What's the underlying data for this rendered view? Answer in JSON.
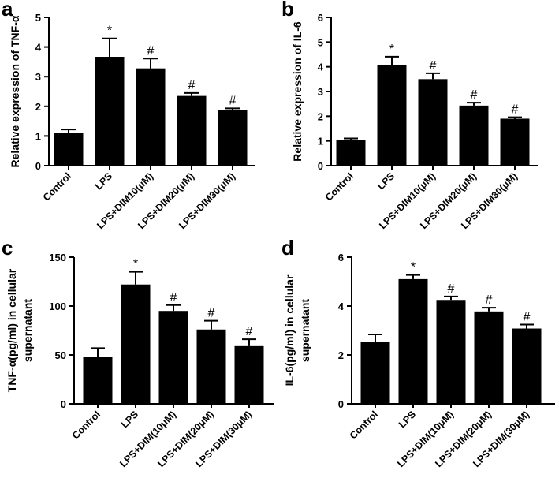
{
  "chart_data": [
    {
      "type": "bar",
      "panel": "a",
      "title": "",
      "xlabel": "",
      "ylabel": "Relative expression of TNF-α",
      "categories": [
        "Control",
        "LPS",
        "LPS+DIM10(μM)",
        "LPS+DIM20(μM)",
        "LPS+DIM30(μM)"
      ],
      "values": [
        1.1,
        3.67,
        3.28,
        2.35,
        1.87
      ],
      "errors": [
        0.12,
        0.62,
        0.33,
        0.1,
        0.06
      ],
      "significance": [
        "",
        "*",
        "#",
        "#",
        "#"
      ],
      "ylim": [
        0,
        5
      ],
      "yticks": [
        0,
        1,
        2,
        3,
        4,
        5
      ]
    },
    {
      "type": "bar",
      "panel": "b",
      "title": "",
      "xlabel": "",
      "ylabel": "Relative expression of IL-6",
      "categories": [
        "Control",
        "LPS",
        "LPS+DIM10(μM)",
        "LPS+DIM20(μM)",
        "LPS+DIM30(μM)"
      ],
      "values": [
        1.05,
        4.08,
        3.5,
        2.43,
        1.9
      ],
      "errors": [
        0.05,
        0.33,
        0.24,
        0.12,
        0.06
      ],
      "significance": [
        "",
        "*",
        "#",
        "#",
        "#"
      ],
      "ylim": [
        0,
        6
      ],
      "yticks": [
        0,
        1,
        2,
        3,
        4,
        5,
        6
      ]
    },
    {
      "type": "bar",
      "panel": "c",
      "title": "",
      "xlabel": "",
      "ylabel": "TNF-α(pg/ml) in cellular supernatant",
      "ylabel_lines": [
        "TNF-α(pg/ml) in cellular",
        "supernatant"
      ],
      "categories": [
        "Control",
        "LPS",
        "LPS+DIM(10μM)",
        "LPS+DIM(20μM)",
        "LPS+DIM(30μM)"
      ],
      "values": [
        48,
        122,
        95,
        76,
        59
      ],
      "errors": [
        9,
        13,
        6,
        9,
        7
      ],
      "significance": [
        "",
        "*",
        "#",
        "#",
        "#"
      ],
      "ylim": [
        0,
        150
      ],
      "yticks": [
        0,
        50,
        100,
        150
      ]
    },
    {
      "type": "bar",
      "panel": "d",
      "title": "",
      "xlabel": "",
      "ylabel": "IL-6(pg/ml) in cellular supernatant",
      "ylabel_lines": [
        "IL-6(pg/ml) in cellular",
        "supernatant"
      ],
      "categories": [
        "Control",
        "LPS",
        "LPS+DIM(10μM)",
        "LPS+DIM(20μM)",
        "LPS+DIM(30μM)"
      ],
      "values": [
        2.52,
        5.1,
        4.25,
        3.78,
        3.08
      ],
      "errors": [
        0.32,
        0.17,
        0.14,
        0.15,
        0.16
      ],
      "significance": [
        "",
        "*",
        "#",
        "#",
        "#"
      ],
      "ylim": [
        0,
        6
      ],
      "yticks": [
        0,
        2,
        4,
        6
      ]
    }
  ],
  "colors": {
    "bar": "#000000",
    "axis": "#000000",
    "background": "#ffffff"
  }
}
